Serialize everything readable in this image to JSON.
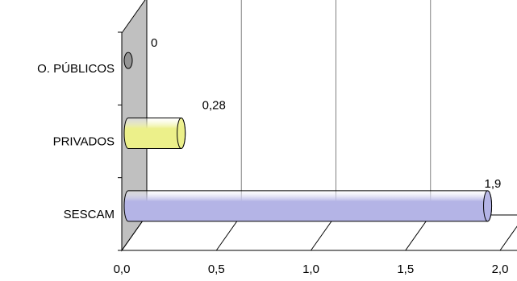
{
  "chart_data": {
    "type": "bar",
    "orientation": "horizontal",
    "three_d": true,
    "categories": [
      "SESCAM",
      "PRIVADOS",
      "O. PÚBLICOS"
    ],
    "values": [
      1.9,
      0.28,
      0
    ],
    "value_labels": [
      "1,9",
      "0,28",
      "0"
    ],
    "bar_colors": [
      "#b4b4e6",
      "#ecf08a",
      "#8c8c8c"
    ],
    "xlim": [
      0,
      2.0
    ],
    "xticks": [
      0,
      0.5,
      1.0,
      1.5,
      2.0
    ],
    "xtick_labels": [
      "0,0",
      "0,5",
      "1,0",
      "1,5",
      "2,0"
    ],
    "grid": true,
    "wall_color": "#c0c0c0"
  }
}
